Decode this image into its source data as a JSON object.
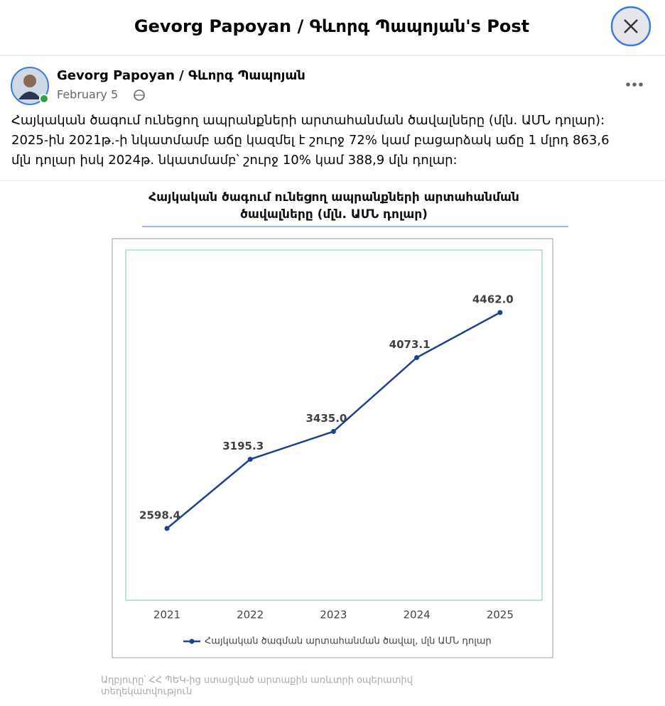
{
  "header": {
    "title": "Gevorg Papoyan / Գևորգ Պապոյան's Post"
  },
  "post": {
    "author": "Gevorg Papoyan / Գևորգ Պապոյան",
    "date": "February 5",
    "text_lines": [
      "Հայկական ծագում ունեցող ապրանքների արտահանման ծավալները (մլն. ԱՄՆ դոլար):",
      "2025-ին 2021թ.-ի նկատմամբ աճը կազմել է շուրջ 72% կամ բացարձակ աճը 1 մլրդ 863,6",
      "մլն դոլար իսկ 2024թ. նկատմամբ՝ շուրջ 10% կամ 388,9 մլն դոլար:"
    ]
  },
  "chart_data": {
    "type": "line",
    "title": [
      "Հայկական ծագում ունեցող ապրանքների արտահանման",
      "ծավալները (մլն. ԱՄՆ դոլար)"
    ],
    "categories": [
      "2021",
      "2022",
      "2023",
      "2024",
      "2025"
    ],
    "series": [
      {
        "name": "Հայկական ծագման արտահանման ծավալ, մլն ԱՄՆ դոլար",
        "color": "#1f3f8f",
        "values": [
          2598.4,
          3195.3,
          3435.0,
          4073.1,
          4462.0
        ],
        "value_labels": [
          "2598.4",
          "3195.3",
          "3435.0",
          "4073.1",
          "4462.0"
        ]
      }
    ],
    "legend": "bottom",
    "source": [
      "Աղբյուրը՝ ՀՀ ՊԵԿ-ից ստացված արտաքին առևտրի օպերատիվ",
      "տեղեկատվություն"
    ]
  }
}
